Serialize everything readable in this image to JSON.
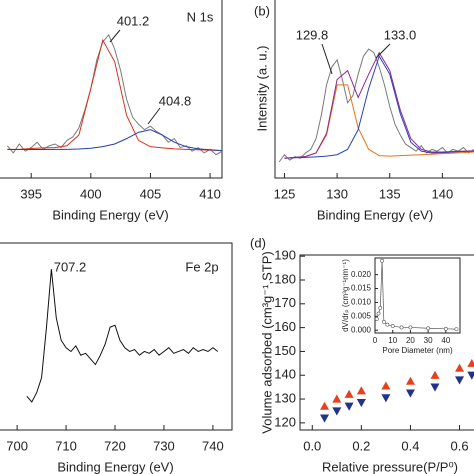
{
  "chart_data": [
    {
      "type": "line",
      "title": "N 1s",
      "xlabel": "Binding Energy (eV)",
      "xlim": [
        392.3,
        411
      ],
      "ylim": [
        0,
        100
      ],
      "xticks": [
        395,
        400,
        405,
        410
      ],
      "annotations": [
        {
          "text": "401.2"
        },
        {
          "text": "404.8"
        }
      ],
      "series": [
        {
          "color": "#7a7a7a",
          "x": [
            393,
            393.5,
            394,
            394.5,
            395,
            395.5,
            396,
            396.5,
            397,
            397.5,
            398,
            398.5,
            399,
            399.5,
            400,
            400.5,
            401,
            401.5,
            402,
            402.5,
            403,
            403.5,
            404,
            404.5,
            405,
            405.5,
            406,
            406.5,
            407,
            407.5,
            408,
            408.5,
            409,
            409.5,
            410,
            410.5,
            411
          ],
          "values": [
            18,
            14,
            19,
            15,
            17,
            20,
            16,
            18,
            19,
            17,
            21,
            23,
            28,
            38,
            50,
            66,
            76,
            80,
            72,
            60,
            44,
            34,
            30,
            27,
            29,
            26,
            24,
            20,
            22,
            17,
            18,
            15,
            17,
            14,
            16,
            13,
            15
          ]
        },
        {
          "color": "#d9301f",
          "x": [
            393,
            394,
            395,
            396,
            397,
            398,
            399,
            400,
            401,
            402,
            403,
            404,
            405,
            406,
            407,
            408,
            409,
            410,
            411
          ],
          "values": [
            16,
            16,
            16.5,
            16.8,
            17,
            18,
            24,
            50,
            77,
            65,
            35,
            21,
            17.5,
            16.8,
            16.3,
            16,
            15.8,
            15.6,
            15.3
          ]
        },
        {
          "color": "#1f3fb0",
          "x": [
            393,
            394,
            395,
            396,
            397,
            398,
            399,
            400,
            401,
            402,
            403,
            404,
            405,
            406,
            407,
            408,
            409,
            410,
            411
          ],
          "values": [
            15.9,
            15.9,
            15.9,
            15.9,
            16,
            16,
            16.2,
            16.6,
            17.5,
            19,
            22,
            25.5,
            27,
            24,
            20,
            17.5,
            16.3,
            15.8,
            15.3
          ]
        }
      ]
    },
    {
      "type": "line",
      "label": "(b)",
      "xlabel": "Binding Energy (eV)",
      "ylabel": "Intensity (a. u.)",
      "xlim": [
        124.1,
        143.1
      ],
      "ylim": [
        0,
        100
      ],
      "xticks": [
        125,
        130,
        135,
        140
      ],
      "annotations": [
        {
          "text": "129.8"
        },
        {
          "text": "133.0"
        }
      ],
      "series": [
        {
          "color": "#7a7a7a",
          "x": [
            124.5,
            125,
            125.5,
            126,
            126.5,
            127,
            127.5,
            128,
            128.5,
            129,
            129.5,
            130,
            130.5,
            131,
            131.5,
            132,
            132.5,
            133,
            133.5,
            134,
            134.5,
            135,
            135.5,
            136,
            136.5,
            137,
            137.5,
            138,
            138.5,
            139,
            139.5,
            140,
            140.5,
            141,
            141.5,
            142,
            142.5,
            143
          ],
          "values": [
            9,
            13,
            10,
            12,
            11,
            14,
            16,
            22,
            35,
            52,
            62,
            66,
            55,
            42,
            46,
            58,
            68,
            72,
            70,
            62,
            52,
            40,
            30,
            24,
            19,
            17,
            15,
            18,
            14,
            16,
            15,
            17,
            14,
            16,
            15,
            17,
            14,
            16
          ]
        },
        {
          "color": "#e8731a",
          "x": [
            125,
            126,
            127,
            128,
            129,
            130,
            131,
            132,
            133,
            134,
            135,
            136,
            137,
            138,
            139,
            140,
            141,
            142,
            143
          ],
          "values": [
            11,
            11.5,
            12,
            14,
            24,
            52,
            52,
            28,
            16,
            12.5,
            12.2,
            12.5,
            12.8,
            13,
            13.3,
            13.6,
            13.9,
            14.2,
            14.5
          ]
        },
        {
          "color": "#2a3fb8",
          "x": [
            125,
            126,
            127,
            128,
            129,
            130,
            131,
            132,
            133,
            134,
            135,
            136,
            137,
            138,
            139,
            140,
            141,
            142,
            143
          ],
          "values": [
            11,
            11.3,
            11.5,
            11.8,
            12.2,
            13,
            16,
            27,
            50,
            68,
            58,
            36,
            20,
            15,
            14,
            14.2,
            14.5,
            14.8,
            15
          ]
        },
        {
          "color": "#8a2a9a",
          "x": [
            125,
            126,
            127,
            128,
            129,
            130,
            131,
            132,
            133,
            134,
            135,
            136,
            137,
            138,
            139,
            140,
            141,
            142,
            143
          ],
          "values": [
            11,
            11.5,
            12,
            14,
            25,
            55,
            60,
            45,
            58,
            70,
            60,
            38,
            22,
            16,
            14.5,
            14.5,
            14.8,
            15,
            15.2
          ]
        }
      ]
    },
    {
      "type": "line",
      "title": "Fe 2p",
      "xlabel": "Binding Energy (eV)",
      "xlim": [
        696.3,
        743.9
      ],
      "ylim": [
        0,
        100
      ],
      "xticks": [
        700,
        710,
        720,
        730,
        740
      ],
      "annotations": [
        {
          "text": "707.2"
        }
      ],
      "series": [
        {
          "color": "#111111",
          "x": [
            702,
            703,
            704,
            705,
            706,
            707,
            708,
            709,
            710,
            711,
            712,
            713,
            714,
            715,
            716,
            717,
            718,
            719,
            720,
            721,
            722,
            723,
            724,
            725,
            726,
            727,
            728,
            729,
            730,
            731,
            732,
            733,
            734,
            735,
            736,
            737,
            738,
            739,
            740,
            741
          ],
          "values": [
            18,
            15,
            20,
            28,
            55,
            86,
            60,
            48,
            44,
            42,
            45,
            40,
            41,
            38,
            35,
            40,
            46,
            55,
            56,
            48,
            44,
            42,
            43,
            40,
            42,
            41,
            43,
            40,
            42,
            44,
            41,
            42,
            43,
            41,
            44,
            42,
            43,
            42,
            44,
            42
          ]
        }
      ]
    },
    {
      "type": "scatter",
      "label": "(d)",
      "xlabel": "Relative pressure(P/P⁰)",
      "ylabel": "Volume adsorbed (cm³g⁻¹,STP)",
      "xlim": [
        -0.05,
        0.663
      ],
      "ylim": [
        117,
        190.5
      ],
      "xticks": [
        {
          "value": 0,
          "label": "0.0"
        },
        {
          "value": 0.2,
          "label": "0.2"
        },
        {
          "value": 0.4,
          "label": "0.4"
        },
        {
          "value": 0.6,
          "label": "0.6"
        }
      ],
      "yticks": [
        120,
        130,
        140,
        150,
        160,
        170,
        180,
        190
      ],
      "series": [
        {
          "color": "#e8401c",
          "marker": "triangle-up",
          "x": [
            0.05,
            0.1,
            0.15,
            0.2,
            0.3,
            0.4,
            0.5,
            0.6,
            0.65
          ],
          "values": [
            127,
            130,
            132,
            133.5,
            135.5,
            137.5,
            140,
            143,
            145
          ]
        },
        {
          "color": "#22338c",
          "marker": "triangle-down",
          "x": [
            0.05,
            0.1,
            0.15,
            0.2,
            0.3,
            0.4,
            0.5,
            0.6,
            0.65
          ],
          "values": [
            122,
            125,
            127,
            128.5,
            130.5,
            132.5,
            135,
            138,
            140
          ]
        }
      ]
    },
    {
      "type": "line",
      "xlabel": "Pore Diameter (nm)",
      "ylabel": "dV/drₚ (cm³g⁻¹nm⁻¹)",
      "xlim": [
        0,
        48
      ],
      "ylim": [
        -0.001,
        0.026
      ],
      "xticks": [
        0,
        10,
        20,
        30,
        40
      ],
      "yticks": [
        {
          "value": 0,
          "label": "0.000"
        },
        {
          "value": 0.005,
          "label": "0.005"
        },
        {
          "value": 0.01,
          "label": "0.010"
        },
        {
          "value": 0.015,
          "label": "0.015"
        },
        {
          "value": 0.02,
          "label": "0.020"
        }
      ],
      "series": [
        {
          "color": "#555555",
          "x": [
            1,
            2,
            3,
            4,
            5,
            7,
            10,
            15,
            20,
            30,
            40,
            46
          ],
          "values": [
            0.004,
            0.006,
            0.008,
            0.025,
            0.003,
            0.002,
            0.0015,
            0.001,
            0.001,
            0.0007,
            0.0005,
            0.0004
          ]
        }
      ]
    }
  ]
}
